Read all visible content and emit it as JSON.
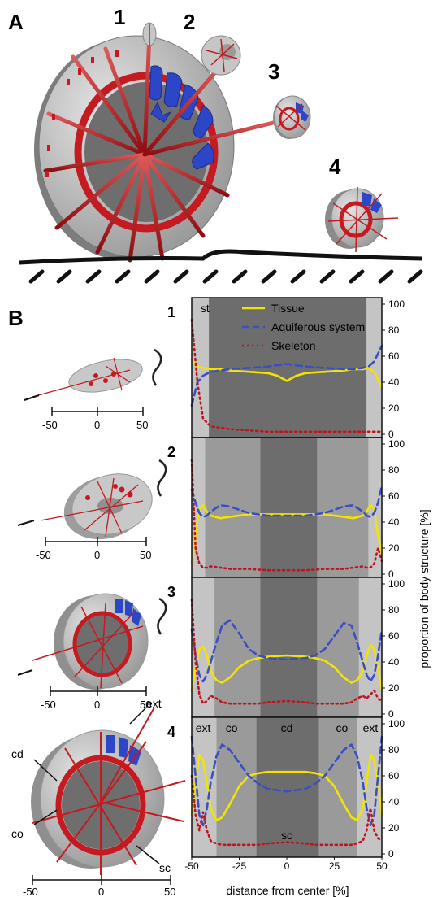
{
  "panel_a": {
    "label": "A",
    "stages": [
      "1",
      "2",
      "3",
      "4"
    ]
  },
  "panel_b": {
    "label": "B",
    "scale_ticks": [
      "-50",
      "0",
      "50"
    ],
    "thumb_labels": {
      "cd": "cd",
      "co": "co",
      "sc": "sc",
      "ext": "ext"
    }
  },
  "colors": {
    "tissue": "#f2e400",
    "aquiferous": "#3a4fc4",
    "skeleton": "#c0141c",
    "body_gray": "#b9b9b9",
    "dark_gray": "#6b6b6b",
    "blue_fill": "#2c46c8"
  },
  "chart_data": [
    {
      "type": "line",
      "panel": "1",
      "x": [
        -50,
        -47,
        -44,
        -40,
        -35,
        -30,
        -20,
        -10,
        -5,
        0,
        5,
        10,
        20,
        30,
        35,
        40,
        43,
        46,
        50
      ],
      "series": [
        {
          "name": "Tissue",
          "values": [
            57,
            52,
            51,
            50,
            50,
            49,
            48,
            47,
            45,
            41,
            45,
            47,
            48,
            49,
            50,
            50,
            51,
            48,
            36
          ]
        },
        {
          "name": "Aquiferous system",
          "values": [
            22,
            40,
            45,
            48,
            49,
            50,
            51,
            52,
            53,
            54,
            53,
            52,
            51,
            50,
            50,
            51,
            52,
            56,
            68
          ]
        },
        {
          "name": "Skeleton",
          "values": [
            88,
            40,
            12,
            6,
            5,
            4,
            3,
            2,
            2,
            2,
            2,
            2,
            2,
            2,
            2,
            2,
            2,
            2,
            2
          ]
        }
      ],
      "bands": [
        {
          "from": -50,
          "to": -41,
          "shade": "light"
        },
        {
          "from": -41,
          "to": 42,
          "shade": "dark"
        },
        {
          "from": 42,
          "to": 50,
          "shade": "light"
        }
      ],
      "band_labels": [
        {
          "x": -43,
          "text": "st"
        }
      ],
      "xlim": [
        -50,
        50
      ],
      "ylim": [
        0,
        100
      ],
      "yticks": [
        0,
        20,
        40,
        60,
        80,
        100
      ]
    },
    {
      "type": "line",
      "panel": "2",
      "x": [
        -50,
        -48,
        -46,
        -44,
        -42,
        -40,
        -35,
        -30,
        -20,
        -10,
        0,
        10,
        20,
        30,
        35,
        40,
        42,
        44,
        46,
        48,
        50
      ],
      "series": [
        {
          "name": "Tissue",
          "values": [
            8,
            30,
            50,
            53,
            48,
            45,
            43,
            44,
            46,
            46,
            46,
            46,
            46,
            44,
            43,
            45,
            48,
            53,
            50,
            30,
            16
          ]
        },
        {
          "name": "Aquiferous system",
          "values": [
            65,
            55,
            47,
            44,
            45,
            48,
            53,
            52,
            47,
            45,
            45,
            45,
            47,
            52,
            53,
            48,
            45,
            44,
            47,
            55,
            68
          ]
        },
        {
          "name": "Skeleton",
          "values": [
            88,
            20,
            8,
            5,
            5,
            6,
            5,
            4,
            4,
            3,
            3,
            3,
            4,
            4,
            5,
            6,
            5,
            5,
            8,
            20,
            10
          ]
        }
      ],
      "bands": [
        {
          "from": -50,
          "to": -43,
          "shade": "light"
        },
        {
          "from": -43,
          "to": -14,
          "shade": "mid"
        },
        {
          "from": -14,
          "to": 16,
          "shade": "dark"
        },
        {
          "from": 16,
          "to": 43,
          "shade": "mid"
        },
        {
          "from": 43,
          "to": 50,
          "shade": "light"
        }
      ],
      "band_labels": [],
      "xlim": [
        -50,
        50
      ],
      "ylim": [
        0,
        100
      ],
      "yticks": [
        0,
        20,
        40,
        60,
        80,
        100
      ]
    },
    {
      "type": "line",
      "panel": "3",
      "x": [
        -50,
        -48,
        -46,
        -44,
        -42,
        -40,
        -37,
        -34,
        -30,
        -25,
        -20,
        -15,
        -10,
        0,
        10,
        15,
        20,
        25,
        30,
        34,
        37,
        40,
        42,
        44,
        46,
        48,
        50
      ],
      "series": [
        {
          "name": "Tissue",
          "values": [
            18,
            35,
            50,
            52,
            45,
            33,
            26,
            24,
            28,
            36,
            41,
            43,
            44,
            45,
            44,
            43,
            41,
            36,
            28,
            24,
            26,
            33,
            45,
            53,
            50,
            35,
            18
          ]
        },
        {
          "name": "Aquiferous system",
          "values": [
            65,
            45,
            30,
            25,
            30,
            40,
            55,
            68,
            72,
            62,
            50,
            45,
            43,
            42,
            43,
            45,
            50,
            60,
            70,
            68,
            55,
            40,
            30,
            25,
            30,
            45,
            65
          ]
        },
        {
          "name": "Skeleton",
          "values": [
            88,
            40,
            15,
            8,
            10,
            14,
            12,
            9,
            8,
            8,
            8,
            8,
            9,
            10,
            9,
            8,
            8,
            8,
            8,
            9,
            12,
            14,
            12,
            15,
            18,
            12,
            10
          ]
        }
      ],
      "bands": [
        {
          "from": -50,
          "to": -38,
          "shade": "light"
        },
        {
          "from": -38,
          "to": -14,
          "shade": "mid"
        },
        {
          "from": -14,
          "to": 16,
          "shade": "dark"
        },
        {
          "from": 16,
          "to": 38,
          "shade": "mid"
        },
        {
          "from": 38,
          "to": 50,
          "shade": "light"
        }
      ],
      "band_labels": [],
      "xlim": [
        -50,
        50
      ],
      "ylim": [
        0,
        100
      ],
      "yticks": [
        0,
        20,
        40,
        60,
        80,
        100
      ]
    },
    {
      "type": "line",
      "panel": "4",
      "x": [
        -50,
        -48,
        -46,
        -44,
        -42,
        -40,
        -37,
        -34,
        -30,
        -25,
        -20,
        -15,
        -10,
        0,
        10,
        15,
        20,
        25,
        30,
        34,
        37,
        40,
        42,
        44,
        46,
        48,
        50
      ],
      "series": [
        {
          "name": "Tissue",
          "values": [
            30,
            55,
            76,
            72,
            55,
            35,
            26,
            28,
            38,
            52,
            60,
            62,
            63,
            63,
            63,
            62,
            60,
            52,
            38,
            28,
            26,
            35,
            55,
            76,
            72,
            55,
            30
          ]
        },
        {
          "name": "Aquiferous system",
          "values": [
            90,
            60,
            30,
            22,
            35,
            55,
            75,
            84,
            80,
            70,
            60,
            54,
            50,
            48,
            50,
            54,
            60,
            70,
            80,
            84,
            75,
            55,
            35,
            22,
            30,
            60,
            90
          ]
        },
        {
          "name": "Skeleton",
          "values": [
            60,
            30,
            18,
            32,
            18,
            10,
            8,
            7,
            7,
            7,
            7,
            7,
            8,
            9,
            8,
            7,
            7,
            7,
            7,
            7,
            8,
            10,
            18,
            35,
            18,
            12,
            10
          ]
        }
      ],
      "bands": [
        {
          "from": -50,
          "to": -37,
          "shade": "light"
        },
        {
          "from": -37,
          "to": -16,
          "shade": "mid"
        },
        {
          "from": -16,
          "to": 17,
          "shade": "dark"
        },
        {
          "from": 17,
          "to": 37,
          "shade": "mid"
        },
        {
          "from": 37,
          "to": 50,
          "shade": "light"
        }
      ],
      "band_labels": [
        {
          "x": -44,
          "text": "ext"
        },
        {
          "x": -29,
          "text": "co"
        },
        {
          "x": 0,
          "text": "cd"
        },
        {
          "x": 29,
          "text": "co"
        },
        {
          "x": 44,
          "text": "ext"
        },
        {
          "x": 0,
          "text": "sc",
          "low": true
        }
      ],
      "xlim": [
        -50,
        50
      ],
      "ylim": [
        0,
        100
      ],
      "yticks": [
        0,
        20,
        40,
        60,
        80,
        100
      ],
      "xticks": [
        -50,
        -25,
        0,
        25,
        50
      ]
    }
  ],
  "axes": {
    "xlabel": "distance from center [%]",
    "ylabel": "proportion of body structure [%]",
    "xtick_labels": [
      "-50",
      "-25",
      "0",
      "25",
      "50"
    ]
  },
  "legend": [
    "Tissue",
    "Aquiferous system",
    "Skeleton"
  ]
}
